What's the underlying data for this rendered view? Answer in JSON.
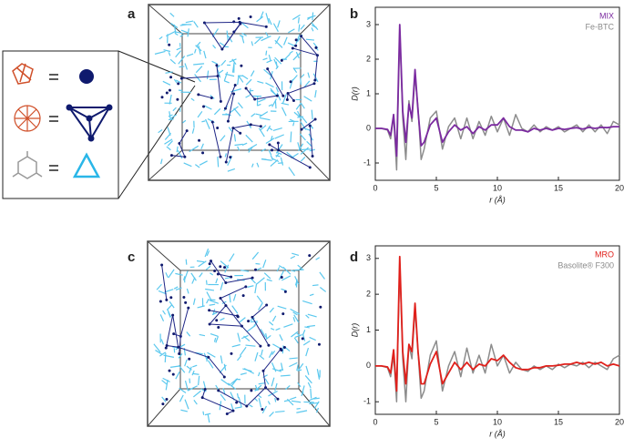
{
  "panels": {
    "a": "a",
    "c": "c"
  },
  "chart_data": [
    {
      "type": "line",
      "panel": "b",
      "xlabel": "r (Å)",
      "ylabel": "D(r)",
      "xlim": [
        0,
        20
      ],
      "ylim": [
        -1.5,
        3.5
      ],
      "xticks": [
        0,
        5,
        10,
        15,
        20
      ],
      "yticks": [
        -1,
        0,
        1,
        2,
        3
      ],
      "legend": "upper right",
      "x": [
        0,
        0.5,
        1,
        1.25,
        1.5,
        1.75,
        2,
        2.25,
        2.5,
        2.75,
        3,
        3.25,
        3.5,
        3.75,
        4,
        4.5,
        5,
        5.5,
        6,
        6.5,
        7,
        7.5,
        8,
        8.5,
        9,
        9.5,
        10,
        10.5,
        11,
        11.5,
        12,
        12.5,
        13,
        13.5,
        14,
        14.5,
        15,
        15.5,
        16,
        16.5,
        17,
        17.5,
        18,
        18.5,
        19,
        19.5,
        20
      ],
      "series": [
        {
          "name": "Fe-BTC",
          "color": "#8c8c8c",
          "values": [
            0,
            0,
            -0.05,
            -0.3,
            0.35,
            -1.2,
            2.85,
            0.3,
            -0.9,
            0.8,
            0.2,
            1.5,
            0.6,
            -0.9,
            -0.6,
            0.3,
            0.5,
            -0.6,
            0.05,
            0.3,
            -0.3,
            0.3,
            -0.3,
            0.2,
            -0.2,
            0.35,
            -0.1,
            0.3,
            -0.2,
            0.4,
            0,
            -0.1,
            0.1,
            -0.1,
            0.05,
            -0.05,
            0.05,
            -0.1,
            0,
            0.1,
            -0.1,
            0.1,
            -0.1,
            0.1,
            -0.15,
            0.2,
            0.1
          ]
        },
        {
          "name": "MIX",
          "color": "#7b2aa0",
          "values": [
            0,
            0,
            -0.03,
            -0.2,
            0.4,
            -0.8,
            3.0,
            0.5,
            -0.4,
            0.7,
            0.3,
            1.7,
            0.5,
            -0.5,
            -0.4,
            0.1,
            0.3,
            -0.4,
            -0.1,
            0.1,
            -0.05,
            0.05,
            -0.15,
            0.05,
            -0.05,
            0.1,
            0.1,
            0.3,
            0.05,
            -0.05,
            -0.05,
            -0.1,
            0,
            -0.05,
            0,
            -0.05,
            0,
            -0.03,
            0,
            0.02,
            -0.02,
            0.03,
            0,
            0.03,
            0.02,
            0.05,
            0.05
          ]
        }
      ]
    },
    {
      "type": "line",
      "panel": "d",
      "xlabel": "r (Å)",
      "ylabel": "D(r)",
      "xlim": [
        0,
        20
      ],
      "ylim": [
        -1.35,
        3.35
      ],
      "xticks": [
        0,
        5,
        10,
        15,
        20
      ],
      "yticks": [
        -1,
        0,
        1,
        2,
        3
      ],
      "legend": "upper right",
      "x": [
        0,
        0.5,
        1,
        1.25,
        1.5,
        1.75,
        2,
        2.25,
        2.5,
        2.75,
        3,
        3.25,
        3.5,
        3.75,
        4,
        4.5,
        5,
        5.5,
        6,
        6.5,
        7,
        7.5,
        8,
        8.5,
        9,
        9.5,
        10,
        10.5,
        11,
        11.5,
        12,
        12.5,
        13,
        13.5,
        14,
        14.5,
        15,
        15.5,
        16,
        16.5,
        17,
        17.5,
        18,
        18.5,
        19,
        19.5,
        20
      ],
      "series": [
        {
          "name": "Basolite® F300",
          "color": "#8c8c8c",
          "values": [
            0,
            0,
            -0.05,
            -0.3,
            0.3,
            -1.0,
            2.9,
            0.2,
            -1.0,
            0.6,
            0.2,
            1.6,
            0.4,
            -0.9,
            -0.7,
            0.3,
            0.7,
            -0.7,
            0.0,
            0.4,
            -0.3,
            0.5,
            -0.2,
            0.3,
            -0.2,
            0.6,
            0,
            0.3,
            -0.2,
            0.1,
            -0.1,
            -0.15,
            0,
            -0.1,
            0,
            -0.1,
            0.05,
            -0.05,
            0.05,
            0,
            0.1,
            -0.05,
            0.1,
            0,
            -0.1,
            0.2,
            0.3
          ]
        },
        {
          "name": "MRO",
          "color": "#e0201b",
          "values": [
            0,
            0,
            -0.03,
            -0.2,
            0.45,
            -0.7,
            3.05,
            0.4,
            -0.5,
            0.6,
            0.4,
            1.75,
            0.4,
            -0.5,
            -0.5,
            0.05,
            0.4,
            -0.5,
            -0.2,
            0.1,
            -0.1,
            0.1,
            -0.1,
            0.05,
            0,
            0.2,
            0.15,
            0.3,
            0.1,
            -0.05,
            -0.1,
            -0.1,
            -0.05,
            -0.05,
            0,
            0,
            0.02,
            0.05,
            0.05,
            0.1,
            0.05,
            0.1,
            0.05,
            0.1,
            0,
            0.05,
            0
          ]
        }
      ]
    }
  ]
}
